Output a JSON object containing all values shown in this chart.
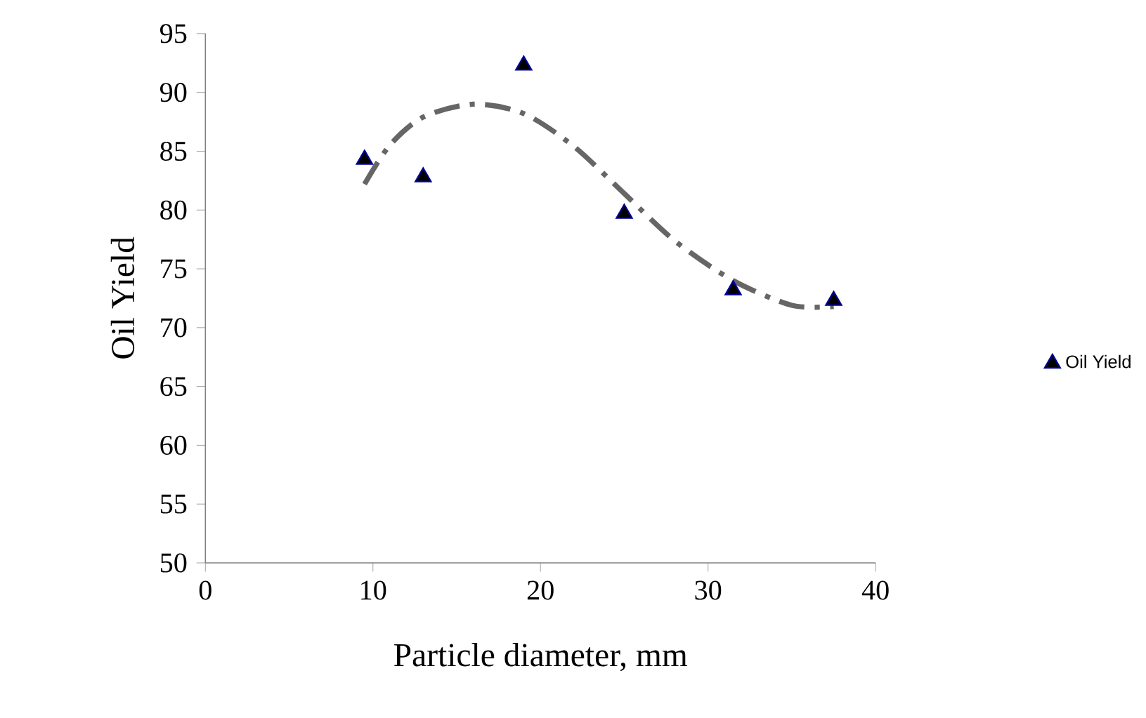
{
  "chart_data": {
    "type": "scatter",
    "xlabel": "Particle diameter, mm",
    "ylabel": "Oil Yield",
    "xlim": [
      0,
      40
    ],
    "ylim": [
      50,
      95
    ],
    "xticks": [
      0,
      10,
      20,
      30,
      40
    ],
    "yticks": [
      50,
      55,
      60,
      65,
      70,
      75,
      80,
      85,
      90,
      95
    ],
    "legend": "right",
    "grid": false,
    "series": [
      {
        "name": "Oil Yield",
        "color": "#000000",
        "marker": "triangle",
        "x": [
          9.5,
          13,
          19,
          25,
          31.5,
          37.5
        ],
        "values": [
          84.3,
          82.8,
          92.3,
          79.7,
          73.2,
          72.3
        ]
      },
      {
        "type": "line",
        "color": "#666666",
        "line_style": "dashed",
        "marker": "none",
        "x": [
          9.5,
          11,
          13,
          16,
          19,
          22,
          25,
          28,
          31.5,
          35,
          37.5
        ],
        "values": [
          82.2,
          85.5,
          87.9,
          89.0,
          88.2,
          85.4,
          81.4,
          77.4,
          74.0,
          71.9,
          71.8
        ]
      }
    ]
  }
}
